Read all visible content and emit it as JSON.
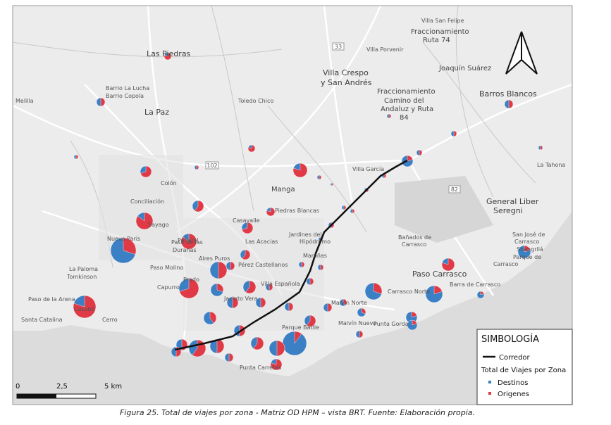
{
  "map": {
    "places": [
      "Villa San Felipe",
      "Fraccionamiento",
      "Ruta 74",
      "Villa Porvenir",
      "Las Piedras",
      "Villa Crespo",
      "y San Andrés",
      "Joaquín Suárez",
      "Barrio La Lucha",
      "Barrio Copola",
      "Melilla",
      "La Paz",
      "Toledo Chico",
      "Fraccionamiento",
      "Camino del",
      "Andaluz y Ruta",
      "84",
      "Barros Blancos",
      "Villa García",
      "La Tahona",
      "Colón",
      "Manga",
      "General Liber",
      "Seregni",
      "Conciliación",
      "Sayago",
      "Peñarol",
      "Casavalle",
      "Piedras Blancas",
      "Nuevo París",
      "Las Acacias",
      "Jardines del",
      "Hipódromo",
      "Bañados de",
      "Carrasco",
      "San José de",
      "Carrasco",
      "Shangrilá",
      "Parque de",
      "Carrasco",
      "La Paloma",
      "Tomkinson",
      "Paso Molino",
      "Aires Puros",
      "Pérez Castellanos",
      "Paso de las",
      "Duranas",
      "Paso Carrasco",
      "Capurro",
      "Prado",
      "Villa Española",
      "Jacinto Vera",
      "Carrasco Norte",
      "Barra de Carrasco",
      "Malvín Norte",
      "Malvín Nuevo",
      "Punta Gorda",
      "Parque Batlle",
      "Punta Carretas",
      "Santa Catalina",
      "Cerro",
      "Casabó",
      "Paso de la Arena",
      "Maroñas"
    ],
    "roads": [
      "33",
      "102",
      "82"
    ]
  },
  "legend": {
    "title": "SIMBOLOGÍA",
    "corridor": "Corredor",
    "subtitle": "Total de Viajes por Zona",
    "items": [
      "Destinos",
      "Origenes"
    ]
  },
  "scale": {
    "labels": [
      "0",
      "2,5",
      "5 km"
    ]
  },
  "caption": "Figura 25. Total de viajes por zona - Matriz OD HPM – vista BRT. Fuente: Elaboración propia."
}
